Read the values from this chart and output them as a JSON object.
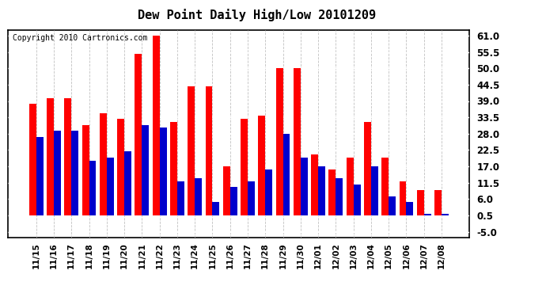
{
  "title": "Dew Point Daily High/Low 20101209",
  "copyright": "Copyright 2010 Cartronics.com",
  "dates": [
    "11/15",
    "11/16",
    "11/17",
    "11/18",
    "11/19",
    "11/20",
    "11/21",
    "11/22",
    "11/23",
    "11/24",
    "11/25",
    "11/26",
    "11/27",
    "11/28",
    "11/29",
    "11/30",
    "12/01",
    "12/02",
    "12/03",
    "12/04",
    "12/05",
    "12/06",
    "12/07",
    "12/08"
  ],
  "highs": [
    38,
    40,
    40,
    31,
    35,
    33,
    55,
    61,
    32,
    44,
    44,
    17,
    33,
    34,
    50,
    50,
    21,
    16,
    20,
    32,
    20,
    12,
    9,
    9
  ],
  "lows": [
    27,
    29,
    29,
    19,
    20,
    22,
    31,
    30,
    12,
    13,
    5,
    10,
    12,
    16,
    28,
    20,
    17,
    13,
    11,
    17,
    7,
    5,
    1,
    1
  ],
  "high_color": "#ff0000",
  "low_color": "#0000cc",
  "bg_color": "#ffffff",
  "plot_bg_color": "#ffffff",
  "grid_color": "#c0c0c0",
  "yticks": [
    -5.0,
    0.5,
    6.0,
    11.5,
    17.0,
    22.5,
    28.0,
    33.5,
    39.0,
    44.5,
    50.0,
    55.5,
    61.0
  ],
  "ylim": [
    -7.0,
    63.0
  ],
  "bar_width": 0.4,
  "figwidth": 6.9,
  "figheight": 3.75
}
